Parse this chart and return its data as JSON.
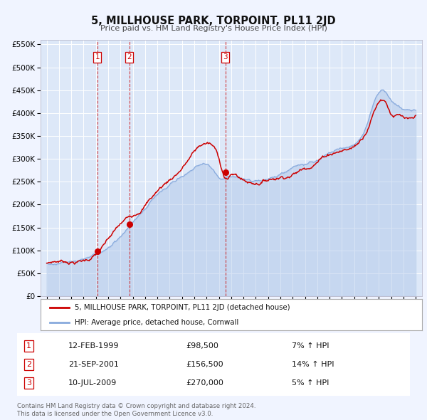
{
  "title": "5, MILLHOUSE PARK, TORPOINT, PL11 2JD",
  "subtitle": "Price paid vs. HM Land Registry's House Price Index (HPI)",
  "legend_line1": "5, MILLHOUSE PARK, TORPOINT, PL11 2JD (detached house)",
  "legend_line2": "HPI: Average price, detached house, Cornwall",
  "transactions": [
    {
      "label": "1",
      "date": "12-FEB-1999",
      "price": 98500,
      "hpi_pct": "7% ↑ HPI",
      "year": 1999.12
    },
    {
      "label": "2",
      "date": "21-SEP-2001",
      "price": 156500,
      "hpi_pct": "14% ↑ HPI",
      "year": 2001.72
    },
    {
      "label": "3",
      "date": "10-JUL-2009",
      "price": 270000,
      "hpi_pct": "5% ↑ HPI",
      "year": 2009.52
    }
  ],
  "footer_line1": "Contains HM Land Registry data © Crown copyright and database right 2024.",
  "footer_line2": "This data is licensed under the Open Government Licence v3.0.",
  "fig_bg_color": "#f0f4ff",
  "plot_bg_color": "#dde8f8",
  "red_color": "#cc0000",
  "blue_line_color": "#88aadd",
  "blue_fill_color": "#aac4e8",
  "grid_color": "#ffffff",
  "ylim": [
    0,
    560000
  ],
  "yticks": [
    0,
    50000,
    100000,
    150000,
    200000,
    250000,
    300000,
    350000,
    400000,
    450000,
    500000,
    550000
  ],
  "xlim_start": 1994.5,
  "xlim_end": 2025.5,
  "xtick_years": [
    1995,
    1996,
    1997,
    1998,
    1999,
    2000,
    2001,
    2002,
    2003,
    2004,
    2005,
    2006,
    2007,
    2008,
    2009,
    2010,
    2011,
    2012,
    2013,
    2014,
    2015,
    2016,
    2017,
    2018,
    2019,
    2020,
    2021,
    2022,
    2023,
    2024,
    2025
  ],
  "marker_years": [
    1999.12,
    2001.72,
    2009.52
  ],
  "marker_prices": [
    98500,
    156500,
    270000
  ],
  "marker_labels": [
    "1",
    "2",
    "3"
  ],
  "row_data": [
    [
      "1",
      "12-FEB-1999",
      "£98,500",
      "7% ↑ HPI"
    ],
    [
      "2",
      "21-SEP-2001",
      "£156,500",
      "14% ↑ HPI"
    ],
    [
      "3",
      "10-JUL-2009",
      "£270,000",
      "5% ↑ HPI"
    ]
  ]
}
